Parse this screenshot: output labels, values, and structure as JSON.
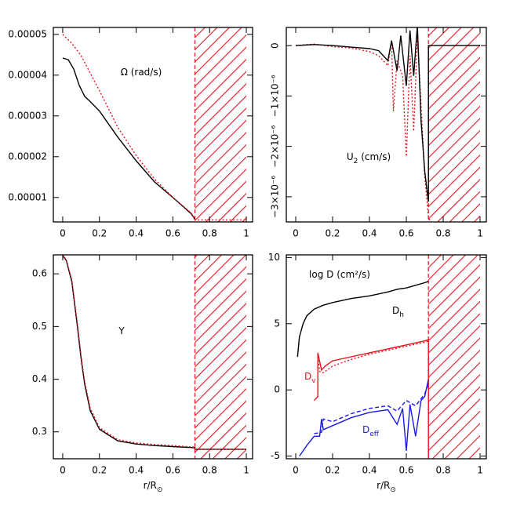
{
  "chart_data": [
    {
      "type": "line",
      "title": [
        {
          "text": "Ω (rad/s)"
        }
      ],
      "xlim": [
        -0.051,
        1.034
      ],
      "xticks": [
        0,
        0.2,
        0.4,
        0.6,
        0.8,
        1
      ],
      "ylim": [
        4e-06,
        5.17e-05
      ],
      "yticks": [
        1e-05,
        2e-05,
        3e-05,
        4e-05,
        5e-05
      ],
      "hatch": [
        0.72,
        1
      ],
      "series": [
        {
          "color": "#000000",
          "dash": "solid",
          "x": [
            0,
            0.03,
            0.06,
            0.09,
            0.12,
            0.15,
            0.2,
            0.3,
            0.4,
            0.5,
            0.6,
            0.7,
            0.72
          ],
          "values": [
            4.42e-05,
            4.38e-05,
            4.15e-05,
            3.75e-05,
            3.48e-05,
            3.35e-05,
            3.12e-05,
            2.48e-05,
            1.9e-05,
            1.38e-05,
            1e-05,
            6e-06,
            4.7e-06
          ]
        },
        {
          "color": "#e8141e",
          "dash": "dotted",
          "x": [
            0,
            0.05,
            0.1,
            0.15,
            0.2,
            0.3,
            0.4,
            0.5,
            0.6,
            0.7,
            0.72,
            1
          ],
          "values": [
            5e-05,
            4.78e-05,
            4.48e-05,
            4.05e-05,
            3.62e-05,
            2.72e-05,
            2.03e-05,
            1.45e-05,
            1e-05,
            6.2e-06,
            4.5e-06,
            4.5e-06
          ]
        }
      ]
    },
    {
      "type": "line",
      "title": [
        {
          "text": "U"
        },
        {
          "text": "2",
          "sub": true
        },
        {
          "text": " (cm/s)"
        }
      ],
      "xlim": [
        -0.051,
        1.034
      ],
      "xticks": [
        0,
        0.2,
        0.4,
        0.6,
        0.8,
        1
      ],
      "ylim": [
        -3.5e-06,
        3.6e-07
      ],
      "yticks": [
        {
          "value": -3e-06,
          "label": "−3×10⁻⁶"
        },
        {
          "value": -2e-06,
          "label": "−2×10⁻⁶"
        },
        {
          "value": -1e-06,
          "label": "−1×10⁻⁶"
        },
        0
      ],
      "ytick_rotate": true,
      "hatch": [
        0.72,
        1
      ],
      "series": [
        {
          "color": "#e8141e",
          "dash": "dotted",
          "x": [
            0,
            0.1,
            0.2,
            0.3,
            0.4,
            0.45,
            0.5,
            0.52,
            0.53,
            0.55,
            0.58,
            0.6,
            0.62,
            0.64,
            0.66,
            0.68,
            0.7,
            0.72,
            0.73
          ],
          "values": [
            0,
            3e-08,
            -2e-08,
            -5e-08,
            -1.2e-07,
            -2e-07,
            -4e-07,
            1e-07,
            -1.3e-06,
            -3e-07,
            -6e-07,
            -2.2e-06,
            -2e-07,
            -1.7e-06,
            2e-07,
            -1.2e-06,
            -2.6e-06,
            -3.4e-06,
            -3.5e-06
          ]
        },
        {
          "color": "#000000",
          "dash": "solid",
          "x": [
            0,
            0.1,
            0.2,
            0.3,
            0.4,
            0.45,
            0.5,
            0.52,
            0.55,
            0.57,
            0.6,
            0.62,
            0.64,
            0.66,
            0.68,
            0.7,
            0.72,
            0.72,
            1
          ],
          "values": [
            0,
            2e-08,
            0,
            -3e-08,
            -6e-08,
            -1e-07,
            -3e-07,
            1e-07,
            -5e-07,
            2e-07,
            -8e-07,
            3e-07,
            -6e-07,
            4e-07,
            -1.5e-06,
            -2.5e-06,
            -3.1e-06,
            0,
            0
          ]
        }
      ]
    },
    {
      "type": "line",
      "title": [
        {
          "text": "Y"
        }
      ],
      "xlabel": [
        {
          "text": "r/R"
        },
        {
          "text": "⊙",
          "sub": true
        }
      ],
      "xlim": [
        -0.051,
        1.034
      ],
      "xticks": [
        0,
        0.2,
        0.4,
        0.6,
        0.8,
        1
      ],
      "ylim": [
        0.249,
        0.636
      ],
      "yticks": [
        0.3,
        0.4,
        0.5,
        0.6
      ],
      "hatch": [
        0.72,
        1
      ],
      "series": [
        {
          "color": "#000000",
          "dash": "solid",
          "x": [
            0,
            0.02,
            0.05,
            0.08,
            0.1,
            0.12,
            0.15,
            0.2,
            0.3,
            0.4,
            0.5,
            0.6,
            0.72,
            0.72,
            1
          ],
          "values": [
            0.635,
            0.625,
            0.585,
            0.5,
            0.44,
            0.39,
            0.34,
            0.305,
            0.283,
            0.277,
            0.274,
            0.272,
            0.27,
            0.267,
            0.267
          ]
        },
        {
          "color": "#e8141e",
          "dash": "dotted",
          "x": [
            0,
            0.02,
            0.05,
            0.08,
            0.1,
            0.12,
            0.15,
            0.2,
            0.3,
            0.4,
            0.5,
            0.6,
            0.72,
            0.72,
            1
          ],
          "values": [
            0.636,
            0.626,
            0.588,
            0.505,
            0.445,
            0.395,
            0.345,
            0.308,
            0.285,
            0.279,
            0.276,
            0.274,
            0.271,
            0.267,
            0.267
          ]
        }
      ]
    },
    {
      "type": "line",
      "title": [
        {
          "text": "log D (cm²/s)"
        }
      ],
      "xlabel": [
        {
          "text": "r/R"
        },
        {
          "text": "⊙",
          "sub": true
        }
      ],
      "xlim": [
        -0.051,
        1.034
      ],
      "xticks": [
        0,
        0.2,
        0.4,
        0.6,
        0.8,
        1
      ],
      "ylim": [
        -5.2,
        10.2
      ],
      "yticks": [
        -5,
        0,
        5,
        10
      ],
      "hatch": [
        0.72,
        1
      ],
      "annotations": [
        {
          "text": "D",
          "sub": "h",
          "color": "#000000"
        },
        {
          "text": "D",
          "sub": "v",
          "color": "#e8141e"
        },
        {
          "text": "D",
          "sub": "eff",
          "color": "#1a1ae6"
        }
      ],
      "series": [
        {
          "color": "#000000",
          "dash": "solid",
          "x": [
            0.01,
            0.02,
            0.04,
            0.06,
            0.1,
            0.15,
            0.2,
            0.3,
            0.4,
            0.5,
            0.55,
            0.6,
            0.65,
            0.7,
            0.72
          ],
          "values": [
            2.5,
            4,
            5,
            5.6,
            6.1,
            6.4,
            6.6,
            6.9,
            7.1,
            7.4,
            7.6,
            7.7,
            7.9,
            8.1,
            8.2
          ]
        },
        {
          "color": "#e8141e",
          "dash": "dotted",
          "x": [
            0.12,
            0.13,
            0.15,
            0.2,
            0.3,
            0.4,
            0.5,
            0.6,
            0.7,
            0.72
          ],
          "values": [
            2.5,
            1.4,
            1.3,
            1.8,
            2.3,
            2.7,
            3,
            3.3,
            3.6,
            3.7
          ]
        },
        {
          "color": "#e8141e",
          "dash": "solid",
          "x": [
            0.1,
            0.12,
            0.12,
            0.14,
            0.16,
            0.2,
            0.3,
            0.4,
            0.5,
            0.6,
            0.7,
            0.72,
            0.72
          ],
          "values": [
            -0.8,
            -0.5,
            2.8,
            1.5,
            1.8,
            2.2,
            2.5,
            2.8,
            3.1,
            3.4,
            3.7,
            3.8,
            -5.2
          ]
        },
        {
          "color": "#1a1ae6",
          "dash": "dashed",
          "x": [
            0.1,
            0.14,
            0.15,
            0.2,
            0.3,
            0.4,
            0.5,
            0.55,
            0.6,
            0.65,
            0.7,
            0.72
          ],
          "values": [
            -3.3,
            -3.2,
            -2.2,
            -2.4,
            -1.8,
            -1.4,
            -1.2,
            -1.6,
            -0.8,
            -1.2,
            -0.3,
            0.5
          ]
        },
        {
          "color": "#1a1ae6",
          "dash": "solid",
          "x": [
            0.02,
            0.06,
            0.1,
            0.13,
            0.14,
            0.15,
            0.2,
            0.3,
            0.4,
            0.5,
            0.55,
            0.58,
            0.6,
            0.62,
            0.65,
            0.68,
            0.7,
            0.72
          ],
          "values": [
            -5,
            -4.2,
            -3.5,
            -3.5,
            -2.2,
            -3,
            -2.7,
            -2.1,
            -1.7,
            -1.5,
            -2.6,
            -1.4,
            -4.6,
            -1.1,
            -3.5,
            -0.8,
            -0.5,
            0.8
          ]
        }
      ]
    }
  ]
}
